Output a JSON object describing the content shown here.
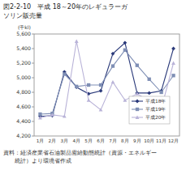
{
  "chart_data": {
    "type": "line",
    "title": [
      "図2-2-10　平成 18～20年のレギュラーガ",
      "ソリン販売量"
    ],
    "y_label": "(千kl)",
    "source": [
      "資料：経済産業省石油製品需給動態統計（資源・エネルギー",
      "統計）より環境省作成"
    ],
    "categories": [
      "1月",
      "2月",
      "3月",
      "4月",
      "5月",
      "6月",
      "7月",
      "8月",
      "9月",
      "10月",
      "11月",
      "12月"
    ],
    "series": [
      {
        "name": "平成18年",
        "color": "#2b3a7a",
        "marker": "diamond",
        "values": [
          4470,
          4480,
          5080,
          4870,
          4780,
          4820,
          5330,
          5480,
          4790,
          4790,
          4820,
          5400
        ]
      },
      {
        "name": "平成19年",
        "color": "#7f8fb5",
        "marker": "square",
        "values": [
          4500,
          4510,
          5050,
          4880,
          4900,
          4900,
          5160,
          5380,
          5170,
          4980,
          4800,
          5030
        ]
      },
      {
        "name": "平成20年",
        "color": "#b9b3d8",
        "marker": "triangle",
        "values": [
          4450,
          4490,
          4470,
          5500,
          4690,
          4560,
          4940,
          4690,
          4780,
          4680,
          4580,
          5200
        ]
      }
    ],
    "ylim": [
      4200,
      5600
    ],
    "yticks": [
      {
        "value": 4200,
        "label": "4,200"
      },
      {
        "value": 4400,
        "label": "4,400"
      },
      {
        "value": 4600,
        "label": "4,600"
      },
      {
        "value": 4800,
        "label": "4,800"
      },
      {
        "value": 5000,
        "label": "5,000"
      },
      {
        "value": 5200,
        "label": "5,200"
      },
      {
        "value": 5400,
        "label": "5,400"
      },
      {
        "value": 5600,
        "label": "5,600"
      }
    ],
    "grid": false,
    "legend": "right"
  }
}
